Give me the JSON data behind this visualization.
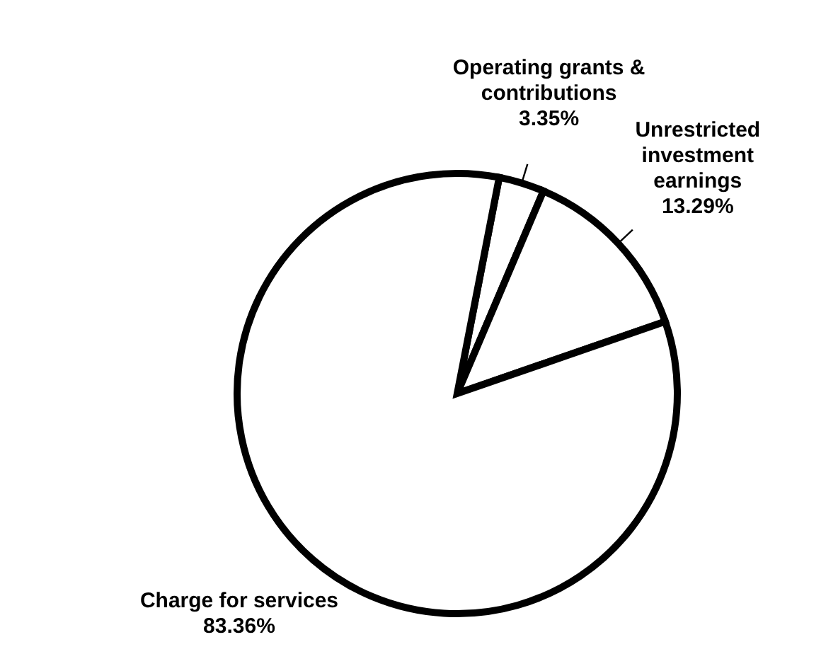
{
  "chart_data": {
    "type": "pie",
    "categories": [
      "Operating grants & contributions",
      "Unrestricted investment earnings",
      "Charge for services"
    ],
    "values": [
      3.35,
      13.29,
      83.36
    ],
    "value_labels": [
      "3.35%",
      "13.29%",
      "83.36%"
    ],
    "colors": [
      "#ffffff",
      "#ffffff",
      "#ffffff"
    ],
    "legend": false
  }
}
